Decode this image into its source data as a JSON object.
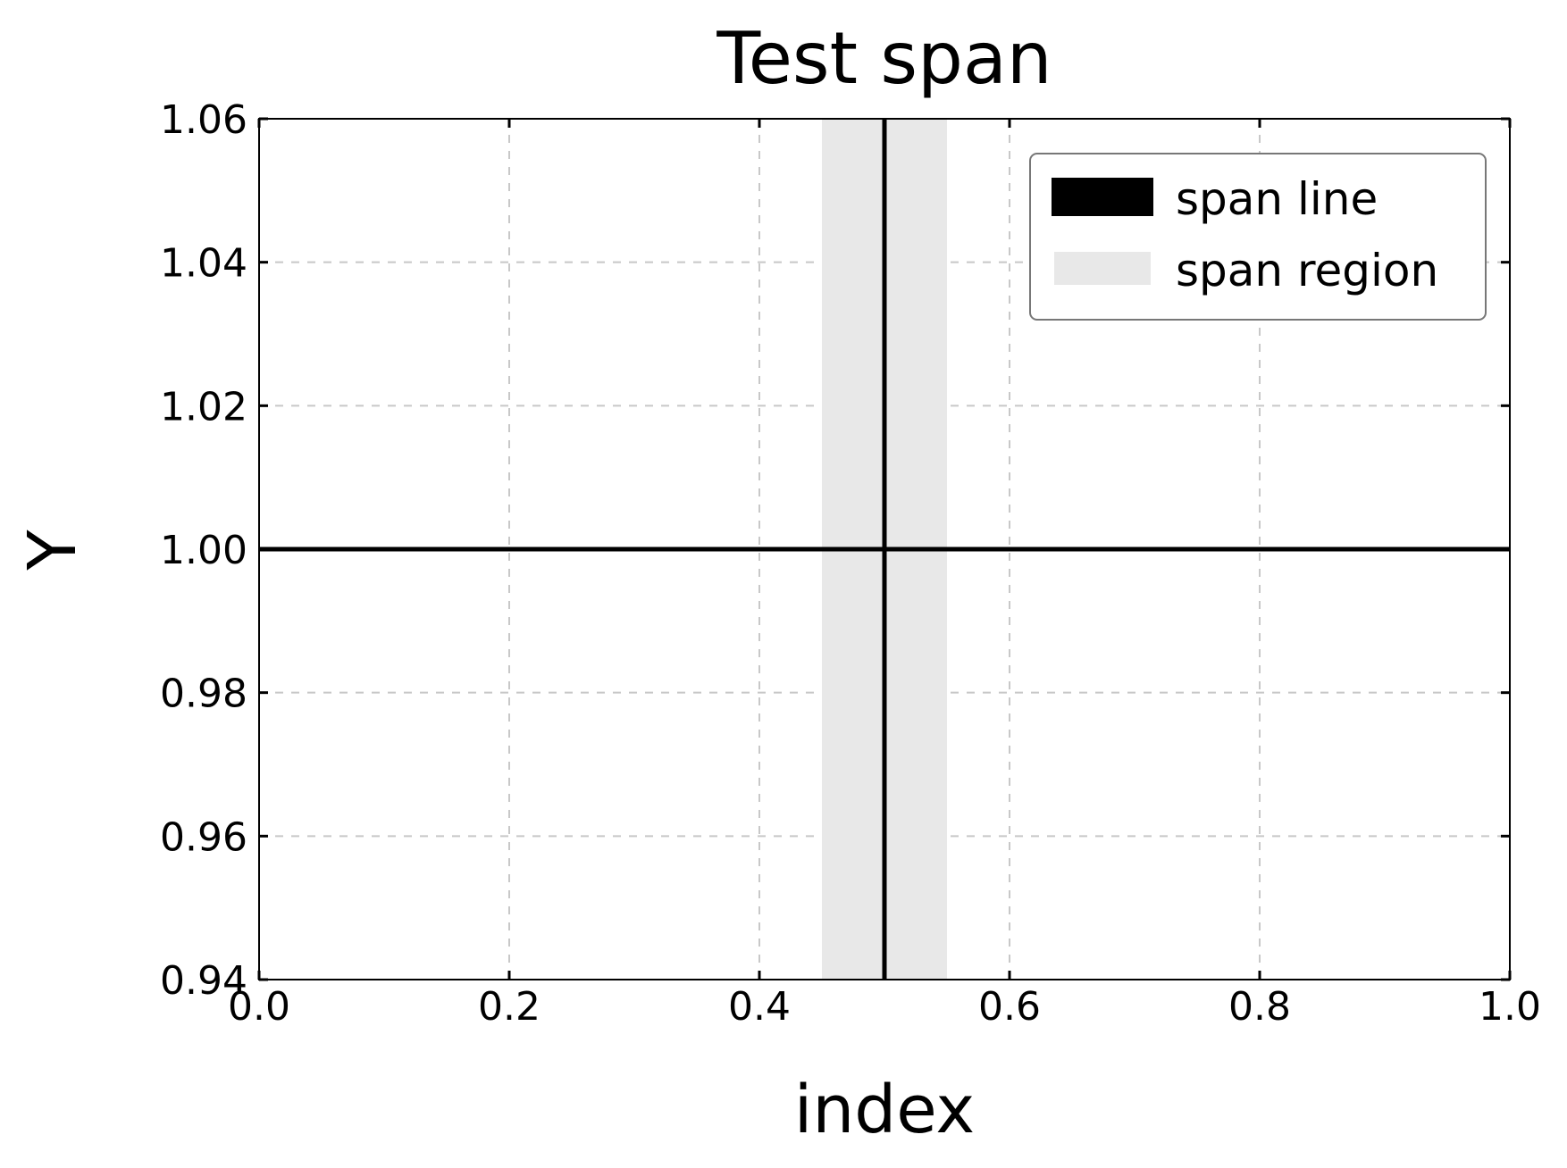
{
  "chart_data": {
    "type": "line",
    "title": "Test span",
    "xlabel": "index",
    "ylabel": "Y",
    "xlim": [
      0.0,
      1.0
    ],
    "ylim": [
      0.94,
      1.06
    ],
    "x_ticks": [
      "0.0",
      "0.2",
      "0.4",
      "0.6",
      "0.8",
      "1.0"
    ],
    "x_tick_values": [
      0.0,
      0.2,
      0.4,
      0.6,
      0.8,
      1.0
    ],
    "y_ticks": [
      "0.94",
      "0.96",
      "0.98",
      "1.00",
      "1.02",
      "1.04",
      "1.06"
    ],
    "y_tick_values": [
      0.94,
      0.96,
      0.98,
      1.0,
      1.02,
      1.04,
      1.06
    ],
    "grid": true,
    "legend_position": "top-right",
    "legend": [
      "span line",
      "span region"
    ],
    "series": [
      {
        "name": "span line",
        "kind": "hline",
        "y": 1.0,
        "color": "#000000"
      },
      {
        "name": "span line",
        "kind": "vline",
        "x": 0.5,
        "color": "#000000"
      },
      {
        "name": "span region",
        "kind": "vspan",
        "x": [
          0.45,
          0.55
        ],
        "color": "#e8e8e8"
      }
    ]
  }
}
